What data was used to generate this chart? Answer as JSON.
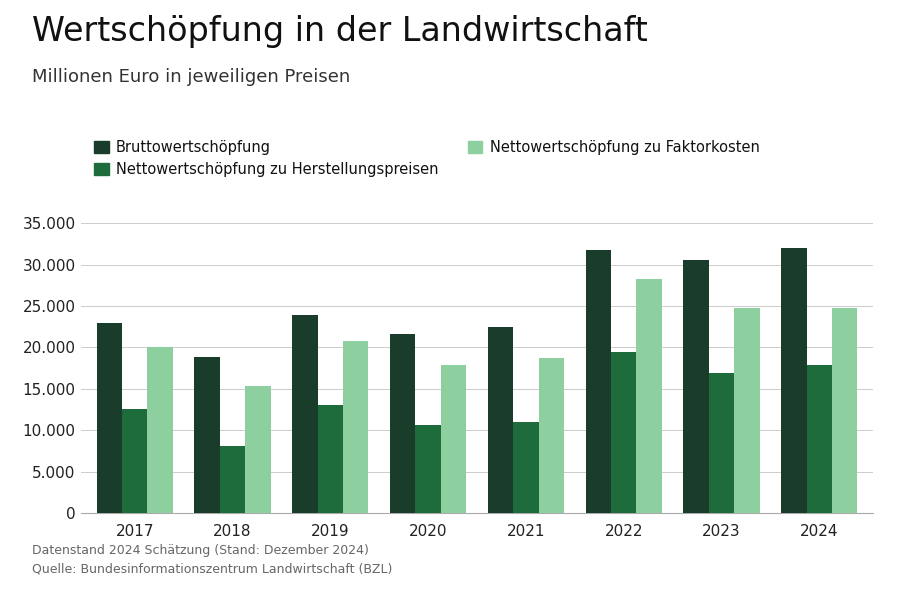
{
  "title": "Wertschöpfung in der Landwirtschaft",
  "subtitle": "Millionen Euro in jeweiligen Preisen",
  "years": [
    2017,
    2018,
    2019,
    2020,
    2021,
    2022,
    2023,
    2024
  ],
  "series": {
    "Bruttowertschöpfung": [
      23000,
      18800,
      23900,
      21600,
      22500,
      31700,
      30600,
      32000
    ],
    "Nettowertschöpfung zu Herstellungspreisen": [
      12600,
      8100,
      13100,
      10600,
      11000,
      19400,
      16900,
      17900
    ],
    "Nettowertschöpfung zu Faktorkosten": [
      20100,
      15300,
      20800,
      17900,
      18700,
      28200,
      24700,
      24700
    ]
  },
  "colors": {
    "Bruttowertschöpfung": "#1a3d2b",
    "Nettowertschöpfung zu Herstellungspreisen": "#1e6b3c",
    "Nettowertschöpfung zu Faktorkosten": "#8ecfa0"
  },
  "ylim": [
    0,
    37000
  ],
  "yticks": [
    0,
    5000,
    10000,
    15000,
    20000,
    25000,
    30000,
    35000
  ],
  "ylabel": "",
  "xlabel": "",
  "footnote_line1": "Datenstand 2024 Schätzung (Stand: Dezember 2024)",
  "footnote_line2": "Quelle: Bundesinformationszentrum Landwirtschaft (BZL)",
  "background_color": "#ffffff",
  "bar_width": 0.26,
  "title_fontsize": 24,
  "subtitle_fontsize": 13,
  "legend_fontsize": 10.5,
  "tick_fontsize": 11,
  "footnote_fontsize": 9
}
